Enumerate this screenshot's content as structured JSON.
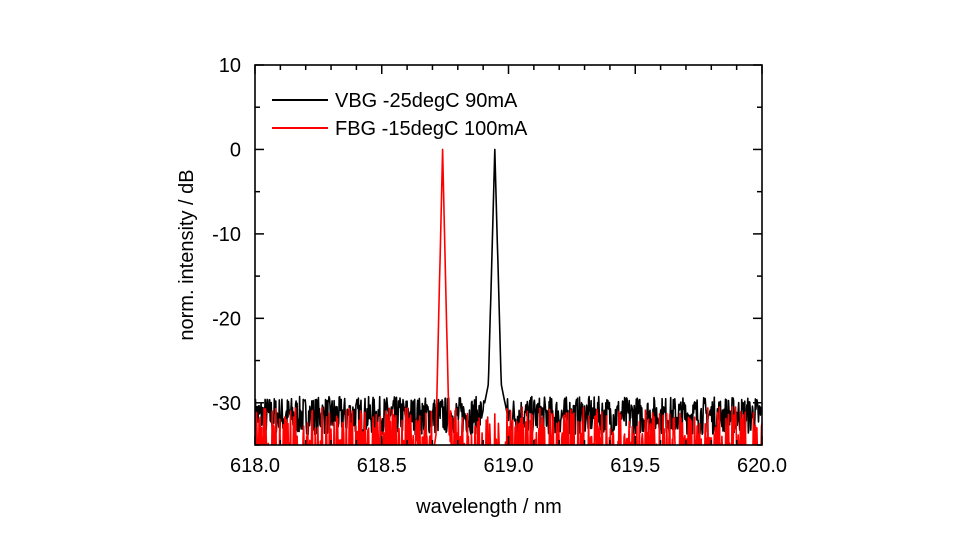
{
  "chart_data": {
    "type": "line",
    "title": "",
    "xlabel": "wavelength / nm",
    "ylabel": "norm. intensity / dB",
    "xlim": [
      618.0,
      620.0
    ],
    "ylim": [
      -35,
      10
    ],
    "xticks": [
      "618.0",
      "618.5",
      "619.0",
      "619.5",
      "620.0"
    ],
    "xtick_values": [
      618.0,
      618.5,
      619.0,
      619.5,
      620.0
    ],
    "yticks": [
      "10",
      "0",
      "-10",
      "-20",
      "-30"
    ],
    "ytick_values": [
      10,
      0,
      -10,
      -20,
      -30
    ],
    "grid": false,
    "legend_position": "top-left",
    "series": [
      {
        "name": "VBG -25degC 90mA",
        "color": "#000000",
        "peak_nm": 618.946,
        "peak_db": 0,
        "noise_floor_db": -31.5
      },
      {
        "name": "FBG -15degC 100mA",
        "color": "#ff0000",
        "peak_nm": 618.74,
        "peak_db": 0,
        "noise_floor_db": -35
      }
    ]
  }
}
